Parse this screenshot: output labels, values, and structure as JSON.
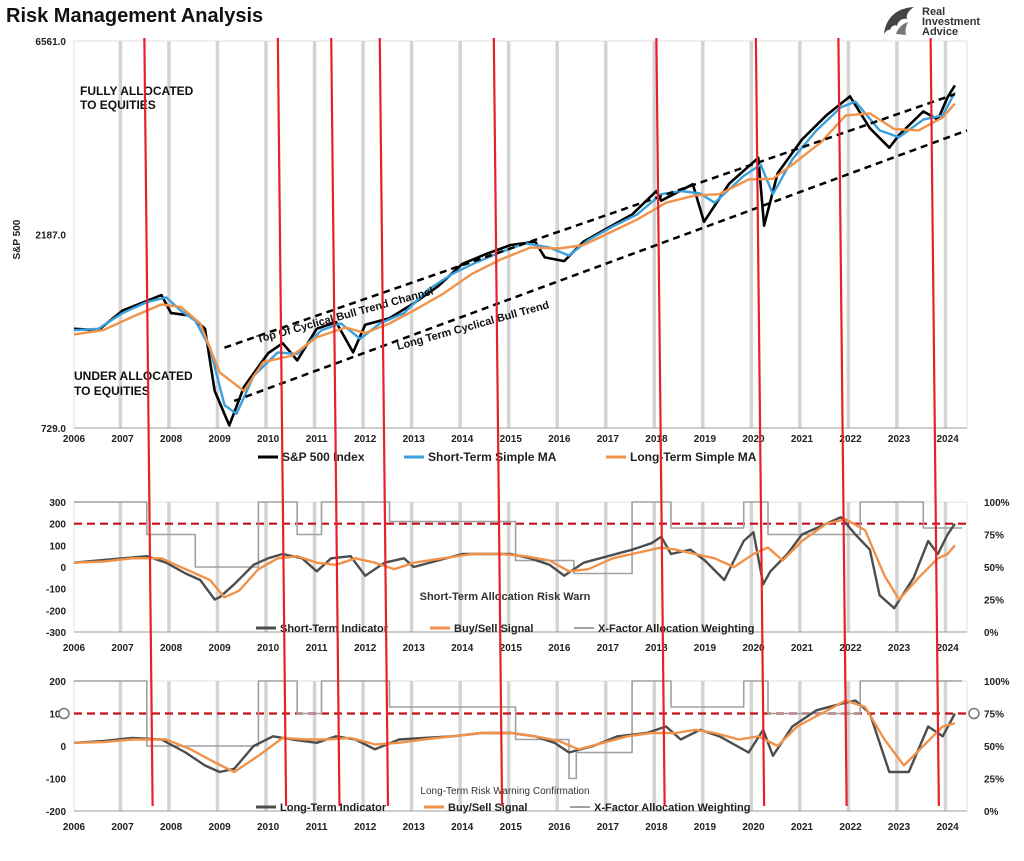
{
  "header": {
    "title": "Risk Management Analysis",
    "logo_line1": "Real",
    "logo_line2": "Investment",
    "logo_line3": "Advice"
  },
  "colors": {
    "price": "#000000",
    "short_ma": "#3aa0dc",
    "long_ma": "#f0924a",
    "indicator": "#4d4d4d",
    "signal": "#f0924a",
    "xfactor": "#a0a0a0",
    "sell_line": "#e8202a",
    "threshold": "#c0101a",
    "year_band": "#d4d4d4"
  },
  "chart_data": [
    {
      "type": "line",
      "ylabel": "S&P 500",
      "y_scale": "log",
      "ylim": [
        729.0,
        6561.0
      ],
      "ytick_labels": [
        "6561.0",
        "2187.0",
        "729.0"
      ],
      "ytick_values": [
        6561.0,
        2187.0,
        729.0
      ],
      "x_tick_labels": [
        "2006",
        "2007",
        "2008",
        "2009",
        "2010",
        "2011",
        "2012",
        "2013",
        "2014",
        "2015",
        "2016",
        "2017",
        "2018",
        "2019",
        "2020",
        "2021",
        "2022",
        "2023",
        "2024"
      ],
      "xlim": [
        2006.0,
        2024.4
      ],
      "grid": "vertical bands",
      "legend_position": "bottom",
      "series": [
        {
          "name": "S&P 500 Index",
          "key": "price",
          "x": [
            2006.0,
            2006.5,
            2007.0,
            2007.5,
            2007.8,
            2008.0,
            2008.4,
            2008.7,
            2008.9,
            2009.2,
            2009.5,
            2010.0,
            2010.3,
            2010.6,
            2011.0,
            2011.4,
            2011.75,
            2012.0,
            2012.5,
            2013.0,
            2013.5,
            2014.0,
            2014.5,
            2015.0,
            2015.5,
            2015.7,
            2016.1,
            2016.5,
            2017.0,
            2017.5,
            2018.0,
            2018.1,
            2018.75,
            2018.98,
            2019.5,
            2020.1,
            2020.22,
            2020.5,
            2021.0,
            2021.5,
            2021.99,
            2022.4,
            2022.8,
            2023.0,
            2023.5,
            2023.8,
            2024.0,
            2024.15
          ],
          "y": [
            1280,
            1270,
            1420,
            1500,
            1550,
            1400,
            1380,
            1280,
            900,
            740,
            920,
            1115,
            1180,
            1070,
            1280,
            1330,
            1120,
            1310,
            1360,
            1480,
            1630,
            1850,
            1960,
            2060,
            2100,
            1920,
            1880,
            2100,
            2270,
            2450,
            2800,
            2650,
            2910,
            2350,
            2920,
            3380,
            2300,
            3100,
            3750,
            4300,
            4790,
            4000,
            3580,
            3850,
            4400,
            4200,
            4770,
            5100
          ]
        },
        {
          "name": "Short-Term Simple MA",
          "key": "short_ma",
          "x": [
            2006.0,
            2006.5,
            2007.0,
            2007.5,
            2007.9,
            2008.2,
            2008.5,
            2008.8,
            2009.1,
            2009.35,
            2009.7,
            2010.2,
            2010.6,
            2011.1,
            2011.5,
            2011.9,
            2012.3,
            2012.8,
            2013.3,
            2013.8,
            2014.3,
            2014.8,
            2015.3,
            2015.8,
            2016.2,
            2016.6,
            2017.1,
            2017.6,
            2018.1,
            2018.5,
            2018.9,
            2019.2,
            2019.8,
            2020.15,
            2020.4,
            2020.8,
            2021.3,
            2021.8,
            2022.1,
            2022.6,
            2023.0,
            2023.5,
            2023.9,
            2024.15
          ],
          "y": [
            1270,
            1280,
            1400,
            1490,
            1530,
            1420,
            1340,
            1150,
            830,
            790,
            980,
            1120,
            1110,
            1270,
            1320,
            1210,
            1320,
            1400,
            1600,
            1750,
            1870,
            1980,
            2080,
            2030,
            1940,
            2120,
            2290,
            2450,
            2750,
            2800,
            2760,
            2620,
            3050,
            3250,
            2750,
            3350,
            3950,
            4500,
            4650,
            3950,
            3800,
            4200,
            4300,
            4900
          ]
        },
        {
          "name": "Long-Term Simple MA",
          "key": "long_ma",
          "x": [
            2006.0,
            2006.6,
            2007.2,
            2007.8,
            2008.2,
            2008.6,
            2009.0,
            2009.5,
            2009.9,
            2010.5,
            2011.0,
            2011.6,
            2012.0,
            2012.5,
            2013.0,
            2013.6,
            2014.2,
            2014.8,
            2015.4,
            2016.0,
            2016.5,
            2017.0,
            2017.6,
            2018.2,
            2018.8,
            2019.3,
            2019.9,
            2020.4,
            2020.8,
            2021.4,
            2021.9,
            2022.4,
            2022.9,
            2023.4,
            2023.9,
            2024.15
          ],
          "y": [
            1240,
            1270,
            1370,
            1470,
            1450,
            1320,
            1000,
            900,
            1060,
            1100,
            1220,
            1290,
            1250,
            1320,
            1420,
            1560,
            1750,
            1900,
            2030,
            2020,
            2060,
            2200,
            2380,
            2620,
            2730,
            2750,
            2990,
            3000,
            3250,
            3700,
            4300,
            4350,
            3980,
            3950,
            4250,
            4600
          ]
        }
      ]
    },
    {
      "type": "line",
      "title": "Short-Term Allocation Risk Warn",
      "ylim": [
        -300,
        300
      ],
      "ytick_labels": [
        "300",
        "200",
        "100",
        "0",
        "-100",
        "-200",
        "-300"
      ],
      "y2_tick_labels": [
        "100%",
        "75%",
        "50%",
        "25%",
        "0%"
      ],
      "x_tick_labels": [
        "2006",
        "2007",
        "2008",
        "2009",
        "2010",
        "2011",
        "2012",
        "2013",
        "2014",
        "2015",
        "2016",
        "2017",
        "2018",
        "2019",
        "2020",
        "2021",
        "2022",
        "2023",
        "2024"
      ],
      "threshold": 200,
      "series": [
        {
          "name": "Short-Term Indicator",
          "key": "indicator",
          "x": [
            2006.0,
            2006.5,
            2007.0,
            2007.5,
            2007.9,
            2008.3,
            2008.6,
            2008.9,
            2009.0,
            2009.3,
            2009.7,
            2010.0,
            2010.3,
            2010.7,
            2011.0,
            2011.3,
            2011.7,
            2012.0,
            2012.4,
            2012.8,
            2013.0,
            2013.5,
            2014.0,
            2014.5,
            2015.0,
            2015.4,
            2015.8,
            2016.1,
            2016.5,
            2017.0,
            2017.5,
            2017.9,
            2018.1,
            2018.3,
            2018.7,
            2019.0,
            2019.4,
            2019.8,
            2020.0,
            2020.2,
            2020.35,
            2020.7,
            2021.0,
            2021.5,
            2021.8,
            2022.1,
            2022.4,
            2022.6,
            2022.9,
            2023.3,
            2023.6,
            2023.8,
            2024.0,
            2024.15
          ],
          "y": [
            20,
            30,
            40,
            50,
            20,
            -30,
            -60,
            -150,
            -140,
            -80,
            10,
            40,
            60,
            40,
            -20,
            40,
            50,
            -40,
            20,
            40,
            0,
            30,
            60,
            60,
            60,
            40,
            10,
            -40,
            20,
            50,
            80,
            110,
            140,
            60,
            80,
            30,
            -60,
            120,
            160,
            -80,
            -20,
            60,
            150,
            200,
            230,
            150,
            80,
            -130,
            -190,
            -50,
            120,
            60,
            150,
            200
          ]
        },
        {
          "name": "Buy/Sell Signal",
          "key": "signal",
          "x": [
            2006.0,
            2006.6,
            2007.2,
            2007.8,
            2008.3,
            2008.8,
            2009.1,
            2009.4,
            2009.8,
            2010.2,
            2010.6,
            2011.0,
            2011.4,
            2011.8,
            2012.2,
            2012.6,
            2013.0,
            2013.6,
            2014.2,
            2014.8,
            2015.3,
            2015.8,
            2016.2,
            2016.6,
            2017.1,
            2017.7,
            2018.1,
            2018.4,
            2018.8,
            2019.2,
            2019.6,
            2020.0,
            2020.3,
            2020.6,
            2021.0,
            2021.5,
            2021.9,
            2022.3,
            2022.7,
            2023.0,
            2023.4,
            2023.8,
            2024.0,
            2024.15
          ],
          "y": [
            20,
            25,
            40,
            40,
            -10,
            -60,
            -140,
            -110,
            -10,
            40,
            50,
            20,
            10,
            40,
            20,
            -10,
            20,
            40,
            60,
            60,
            50,
            30,
            -20,
            -10,
            40,
            70,
            90,
            80,
            60,
            40,
            0,
            60,
            90,
            30,
            120,
            200,
            220,
            170,
            -40,
            -150,
            -50,
            40,
            60,
            100
          ]
        },
        {
          "name": "X-Factor Allocation Weighting",
          "key": "xfactor",
          "x": [
            2006.0,
            2007.5,
            2007.5,
            2008.5,
            2008.5,
            2009.8,
            2009.8,
            2010.6,
            2010.6,
            2011.1,
            2011.1,
            2012.5,
            2012.5,
            2015.1,
            2015.1,
            2016.3,
            2016.3,
            2017.5,
            2017.5,
            2018.3,
            2018.3,
            2019.8,
            2019.8,
            2020.3,
            2020.3,
            2022.2,
            2022.2,
            2023.5,
            2023.5,
            2024.3
          ],
          "y": [
            100,
            100,
            75,
            75,
            50,
            50,
            100,
            100,
            75,
            75,
            100,
            100,
            85,
            85,
            55,
            55,
            45,
            45,
            100,
            100,
            80,
            80,
            100,
            100,
            75,
            75,
            100,
            100,
            80,
            80
          ]
        }
      ]
    },
    {
      "type": "line",
      "title": "Long-Term Risk Warning Confirmation",
      "ylim": [
        -200,
        200
      ],
      "ytick_labels": [
        "200",
        "100",
        "0",
        "-100",
        "-200"
      ],
      "y2_tick_labels": [
        "100%",
        "75%",
        "50%",
        "25%",
        "0%"
      ],
      "x_tick_labels": [
        "2006",
        "2007",
        "2008",
        "2009",
        "2010",
        "2011",
        "2012",
        "2013",
        "2014",
        "2015",
        "2016",
        "2017",
        "2018",
        "2019",
        "2020",
        "2021",
        "2022",
        "2023",
        "2024"
      ],
      "threshold": 100,
      "series": [
        {
          "name": "Long-Term Indicator",
          "key": "indicator",
          "x": [
            2006.0,
            2006.6,
            2007.2,
            2007.8,
            2008.3,
            2008.7,
            2009.0,
            2009.3,
            2009.7,
            2010.1,
            2010.5,
            2011.0,
            2011.4,
            2011.8,
            2012.2,
            2012.7,
            2013.2,
            2013.8,
            2014.4,
            2015.0,
            2015.5,
            2015.9,
            2016.2,
            2016.7,
            2017.2,
            2017.8,
            2018.2,
            2018.5,
            2018.9,
            2019.3,
            2019.9,
            2020.2,
            2020.4,
            2020.8,
            2021.3,
            2021.8,
            2022.1,
            2022.4,
            2022.8,
            2023.2,
            2023.6,
            2023.9,
            2024.15
          ],
          "y": [
            10,
            15,
            25,
            20,
            -20,
            -60,
            -80,
            -70,
            0,
            30,
            20,
            10,
            30,
            20,
            -10,
            20,
            25,
            30,
            40,
            40,
            30,
            10,
            -20,
            0,
            30,
            40,
            60,
            20,
            50,
            30,
            -20,
            50,
            -30,
            60,
            110,
            130,
            140,
            100,
            -80,
            -80,
            60,
            30,
            100
          ]
        },
        {
          "name": "Buy/Sell Signal",
          "key": "signal",
          "x": [
            2006.0,
            2006.6,
            2007.2,
            2007.9,
            2008.4,
            2008.9,
            2009.3,
            2009.8,
            2010.3,
            2010.8,
            2011.2,
            2011.7,
            2012.2,
            2012.7,
            2013.2,
            2013.8,
            2014.4,
            2015.0,
            2015.5,
            2016.0,
            2016.4,
            2016.9,
            2017.4,
            2017.9,
            2018.4,
            2018.8,
            2019.2,
            2019.7,
            2020.1,
            2020.5,
            2020.9,
            2021.4,
            2021.9,
            2022.3,
            2022.7,
            2023.1,
            2023.5,
            2023.9,
            2024.15
          ],
          "y": [
            10,
            12,
            20,
            20,
            -10,
            -50,
            -80,
            -30,
            25,
            20,
            20,
            25,
            5,
            10,
            20,
            30,
            40,
            40,
            30,
            15,
            -10,
            10,
            30,
            40,
            40,
            50,
            40,
            20,
            30,
            0,
            60,
            100,
            140,
            120,
            20,
            -60,
            0,
            60,
            70
          ]
        },
        {
          "name": "X-Factor Allocation Weighting",
          "key": "xfactor",
          "x": [
            2006.0,
            2007.5,
            2007.5,
            2009.8,
            2009.8,
            2010.6,
            2010.6,
            2011.1,
            2011.1,
            2012.5,
            2012.5,
            2015.1,
            2015.1,
            2016.2,
            2016.2,
            2016.35,
            2016.35,
            2017.5,
            2017.5,
            2018.3,
            2018.3,
            2019.8,
            2019.8,
            2020.3,
            2020.3,
            2022.2,
            2022.2,
            2024.3
          ],
          "y": [
            100,
            100,
            50,
            50,
            100,
            100,
            75,
            75,
            100,
            100,
            80,
            80,
            55,
            55,
            25,
            25,
            45,
            45,
            100,
            100,
            80,
            80,
            100,
            100,
            75,
            75,
            100,
            100
          ]
        }
      ]
    }
  ],
  "sell_signals": [
    2007.5,
    2010.25,
    2011.35,
    2012.35,
    2014.7,
    2018.05,
    2020.1,
    2021.8,
    2023.7
  ],
  "annotations": {
    "fully_allocated": "FULLY ALLOCATED\nTO EQUITIES",
    "under_allocated": "UNDER ALLOCATED\nTO EQUITIES",
    "top_channel": "Top Of Cyclical Bull Trend Channel",
    "long_term_trend": "Long Term Cyclical Bull Trend"
  }
}
